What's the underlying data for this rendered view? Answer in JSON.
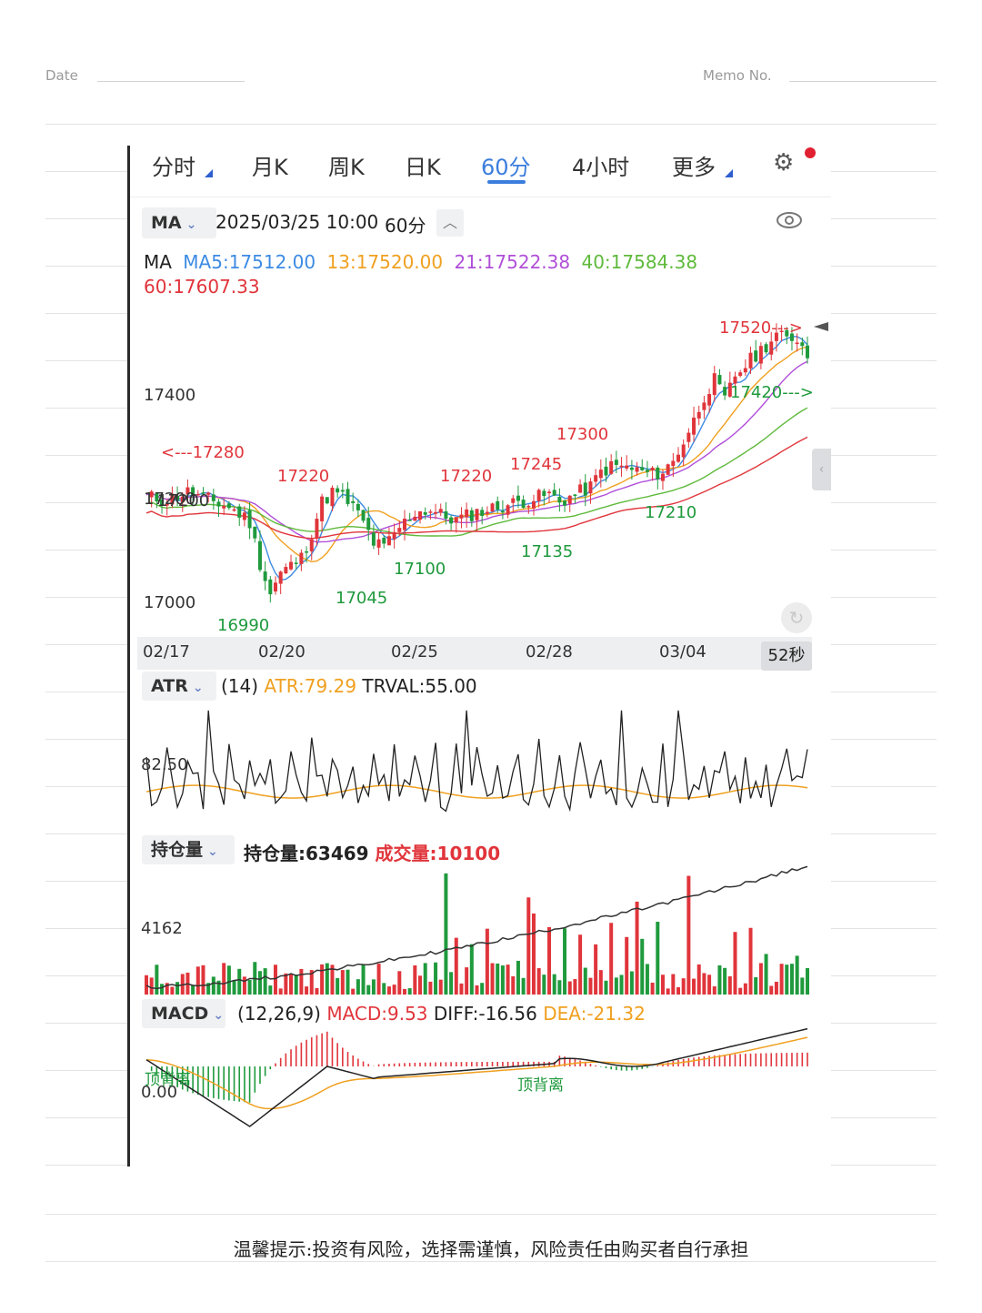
{
  "memo": {
    "date_label": "Date",
    "memo_label": "Memo No."
  },
  "tabs": [
    {
      "label": "分时",
      "active": false,
      "has_dropdown": true
    },
    {
      "label": "月K",
      "active": false,
      "has_dropdown": false
    },
    {
      "label": "周K",
      "active": false,
      "has_dropdown": false
    },
    {
      "label": "日K",
      "active": false,
      "has_dropdown": false
    },
    {
      "label": "60分",
      "active": true,
      "has_dropdown": false
    },
    {
      "label": "4小时",
      "active": false,
      "has_dropdown": false
    },
    {
      "label": "更多",
      "active": false,
      "has_dropdown": true
    }
  ],
  "icons": {
    "settings": "gear-icon",
    "notification": "red-dot",
    "visibility": "eye-icon",
    "collapse": "chevron-up-icon",
    "refresh": "refresh-icon"
  },
  "info_bar": {
    "indicator": "MA",
    "timestamp": "2025/03/25 10:00",
    "period": "60分"
  },
  "ma_legend": {
    "label": "MA",
    "items": [
      {
        "text": "MA5:17512.00",
        "color": "#3d8be3"
      },
      {
        "text": "13:17520.00",
        "color": "#f0a020"
      },
      {
        "text": "21:17522.38",
        "color": "#b04fd8"
      },
      {
        "text": "40:17584.38",
        "color": "#5fba3c"
      },
      {
        "text": "60:17607.33",
        "color": "#e0353b"
      }
    ]
  },
  "price_axis": {
    "labels": [
      "17400",
      "17200",
      "17000"
    ]
  },
  "date_axis": [
    "02/17",
    "02/20",
    "02/25",
    "02/28",
    "03/04"
  ],
  "timer": "52秒",
  "colors": {
    "up": "#e0353b",
    "down": "#1f9a3d",
    "accent": "#3b7ddd"
  },
  "atr_panel": {
    "name": "ATR",
    "params": "(14)",
    "atr_text": "ATR:79.29",
    "trval_text": "TRVAL:55.00",
    "axis_label": "82.50"
  },
  "oi_panel": {
    "name": "持仓量",
    "oi_text": "持仓量:63469",
    "vol_text": "成交量:10100",
    "axis_label": "4162"
  },
  "macd_panel": {
    "name": "MACD",
    "params": "(12,26,9)",
    "macd_text": "MACD:9.53",
    "diff_text": "DIFF:-16.56",
    "dea_text": "DEA:-21.32",
    "axis_label": "0.00",
    "notes": [
      "顶背离",
      "顶背离"
    ]
  },
  "disclaimer": "温馨提示:投资有风险，选择需谨慎，风险责任由购买者自行承担",
  "chart_data": {
    "type": "candlestick",
    "y_range": [
      16950,
      17560
    ],
    "price_labels": [
      {
        "text": "17520--->",
        "value": 17520,
        "kind": "high"
      },
      {
        "text": "<---17280",
        "value": 17280,
        "kind": "high"
      },
      {
        "text": "17220",
        "value": 17220,
        "kind": "high"
      },
      {
        "text": "17220",
        "value": 17220,
        "kind": "high"
      },
      {
        "text": "17245",
        "value": 17245,
        "kind": "high"
      },
      {
        "text": "17300",
        "value": 17300,
        "kind": "high"
      },
      {
        "text": "17420--->",
        "value": 17420,
        "kind": "low"
      },
      {
        "text": "16990",
        "value": 16990,
        "kind": "low"
      },
      {
        "text": "17045",
        "value": 17045,
        "kind": "low"
      },
      {
        "text": "17100",
        "value": 17100,
        "kind": "low"
      },
      {
        "text": "17135",
        "value": 17135,
        "kind": "low"
      },
      {
        "text": "17210",
        "value": 17210,
        "kind": "low"
      },
      {
        "text": "17200",
        "value": 17200,
        "kind": "axis"
      }
    ],
    "candles": {
      "count": 100,
      "close_path": [
        [
          0,
          17190
        ],
        [
          4,
          17185
        ],
        [
          8,
          17200
        ],
        [
          12,
          17185
        ],
        [
          16,
          17170
        ],
        [
          19,
          17150
        ],
        [
          20,
          17140
        ],
        [
          22,
          17060
        ],
        [
          24,
          17000
        ],
        [
          26,
          17040
        ],
        [
          30,
          17070
        ],
        [
          32,
          17120
        ],
        [
          34,
          17180
        ],
        [
          36,
          17200
        ],
        [
          38,
          17190
        ],
        [
          40,
          17170
        ],
        [
          42,
          17140
        ],
        [
          44,
          17100
        ],
        [
          46,
          17090
        ],
        [
          49,
          17130
        ],
        [
          52,
          17160
        ],
        [
          55,
          17165
        ],
        [
          58,
          17150
        ],
        [
          60,
          17145
        ],
        [
          64,
          17160
        ],
        [
          68,
          17170
        ],
        [
          72,
          17180
        ],
        [
          76,
          17190
        ],
        [
          78,
          17195
        ],
        [
          80,
          17180
        ],
        [
          82,
          17190
        ],
        [
          84,
          17200
        ],
        [
          86,
          17210
        ],
        [
          88,
          17240
        ],
        [
          90,
          17250
        ],
        [
          92,
          17250
        ],
        [
          94,
          17245
        ],
        [
          96,
          17240
        ],
        [
          98,
          17235
        ],
        [
          100,
          17240
        ],
        [
          102,
          17260
        ],
        [
          104,
          17300
        ],
        [
          106,
          17340
        ],
        [
          108,
          17390
        ],
        [
          110,
          17420
        ],
        [
          112,
          17380
        ],
        [
          114,
          17430
        ],
        [
          116,
          17450
        ],
        [
          118,
          17470
        ],
        [
          120,
          17490
        ],
        [
          122,
          17510
        ],
        [
          124,
          17500
        ],
        [
          126,
          17505
        ],
        [
          128,
          17470
        ]
      ]
    },
    "ma_lines": [
      {
        "name": "MA5",
        "color": "#3d8be3"
      },
      {
        "name": "13",
        "color": "#f0a020"
      },
      {
        "name": "21",
        "color": "#b04fd8"
      },
      {
        "name": "40",
        "color": "#5fba3c"
      },
      {
        "name": "60",
        "color": "#e0353b"
      }
    ],
    "atr": {
      "y_range": [
        40,
        160
      ],
      "trval_level": 82.5
    },
    "open_interest": {
      "start": 42000,
      "end": 63469
    },
    "macd": {
      "y_range": [
        -60,
        30
      ]
    }
  }
}
